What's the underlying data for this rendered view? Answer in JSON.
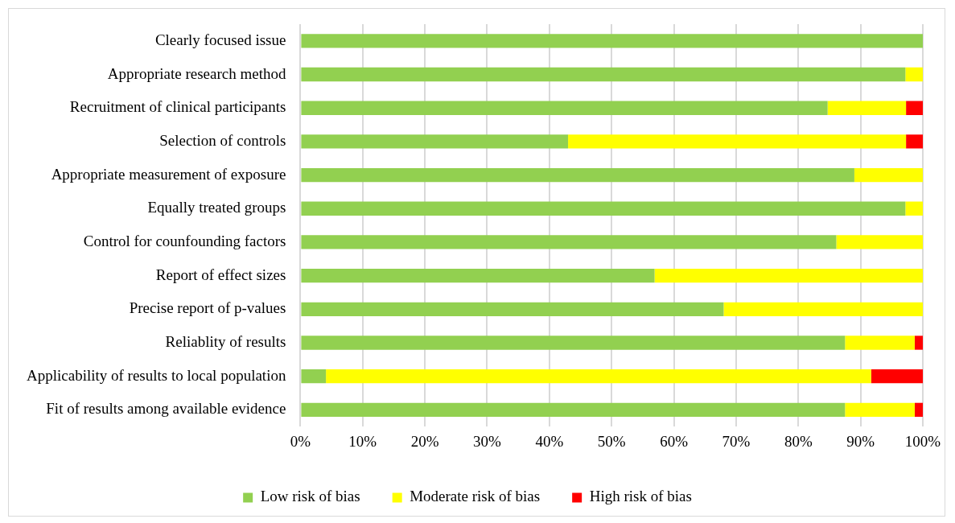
{
  "chart_data": {
    "type": "bar",
    "orientation": "horizontal",
    "stacked": true,
    "categories": [
      "Clearly focused issue",
      "Appropriate research method",
      "Recruitment of clinical participants",
      "Selection of controls",
      "Appropriate measurement of exposure",
      "Equally treated groups",
      "Control for counfounding factors",
      "Report of effect sizes",
      "Precise report of p-values",
      "Reliablity of results",
      "Applicability of results to local population",
      "Fit of results among available evidence"
    ],
    "series": [
      {
        "name": "Low risk of bias",
        "color": "#92d050",
        "values": [
          100,
          97.2,
          84.7,
          43.0,
          89.0,
          97.2,
          86.1,
          56.9,
          68.0,
          87.5,
          4.1,
          87.5
        ]
      },
      {
        "name": "Moderate risk of bias",
        "color": "#ffff00",
        "values": [
          0,
          2.8,
          12.6,
          54.3,
          11.0,
          2.8,
          13.9,
          43.1,
          32.0,
          11.2,
          87.6,
          11.2
        ]
      },
      {
        "name": "High risk of bias",
        "color": "#ff0000",
        "values": [
          0,
          0,
          2.7,
          2.7,
          0,
          0,
          0,
          0,
          0,
          1.3,
          8.3,
          1.3
        ]
      }
    ],
    "xlim": [
      0,
      100
    ],
    "xticks": [
      {
        "value": 0,
        "label": "0%"
      },
      {
        "value": 10,
        "label": "10%"
      },
      {
        "value": 20,
        "label": "20%"
      },
      {
        "value": 30,
        "label": "30%"
      },
      {
        "value": 40,
        "label": "40%"
      },
      {
        "value": 50,
        "label": "50%"
      },
      {
        "value": 60,
        "label": "60%"
      },
      {
        "value": 70,
        "label": "70%"
      },
      {
        "value": 80,
        "label": "80%"
      },
      {
        "value": 90,
        "label": "90%"
      },
      {
        "value": 100,
        "label": "100%"
      }
    ],
    "grid": "x",
    "legend": "bottom"
  }
}
